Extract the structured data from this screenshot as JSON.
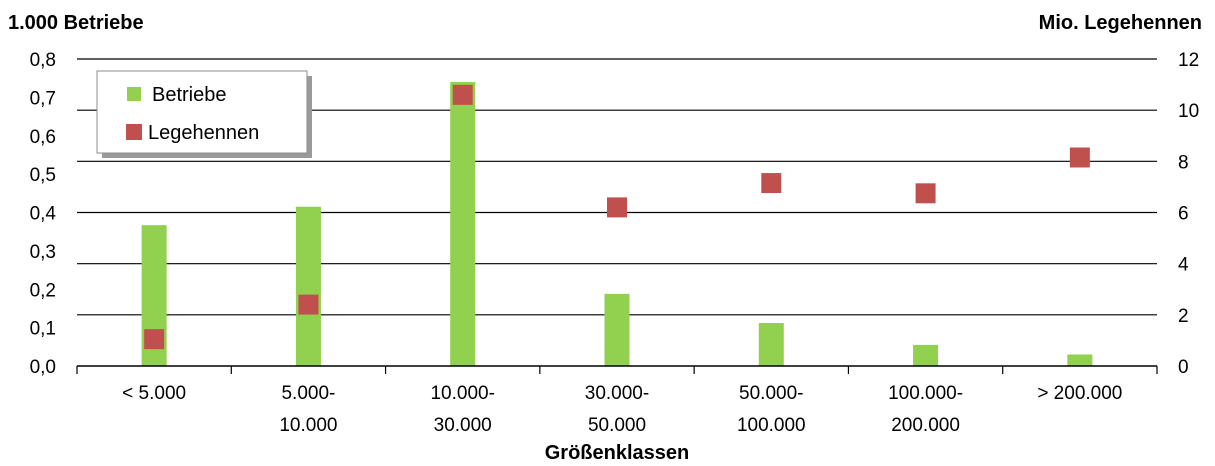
{
  "chart_data": {
    "type": "bar",
    "xlabel": "Größenklassen",
    "categories": [
      [
        "< 5.000"
      ],
      [
        "5.000-",
        "10.000"
      ],
      [
        "10.000-",
        "30.000"
      ],
      [
        "30.000-",
        "50.000"
      ],
      [
        "50.000-",
        "100.000"
      ],
      [
        "100.000-",
        "200.000"
      ],
      [
        "> 200.000"
      ]
    ],
    "left_axis": {
      "title": "1.000 Betriebe",
      "min": 0,
      "max": 0.8,
      "step": 0.1,
      "ticks": [
        "0,0",
        "0,1",
        "0,2",
        "0,3",
        "0,4",
        "0,5",
        "0,6",
        "0,7",
        "0,8"
      ]
    },
    "right_axis": {
      "title": "Mio. Legehennen",
      "min": 0,
      "max": 12,
      "step": 2,
      "ticks": [
        "0",
        "2",
        "4",
        "6",
        "8",
        "10",
        "12"
      ]
    },
    "series": [
      {
        "name": "Betriebe",
        "kind": "bar",
        "axis": "left",
        "color": "#92d050",
        "values": [
          0.367,
          0.415,
          0.74,
          0.188,
          0.112,
          0.055,
          0.03
        ]
      },
      {
        "name": "Legehennen",
        "kind": "marker",
        "axis": "right",
        "color": "#c0504d",
        "values": [
          1.05,
          2.4,
          10.6,
          6.2,
          7.15,
          6.75,
          8.15
        ]
      }
    ],
    "grid": true,
    "legend": "top-left"
  }
}
